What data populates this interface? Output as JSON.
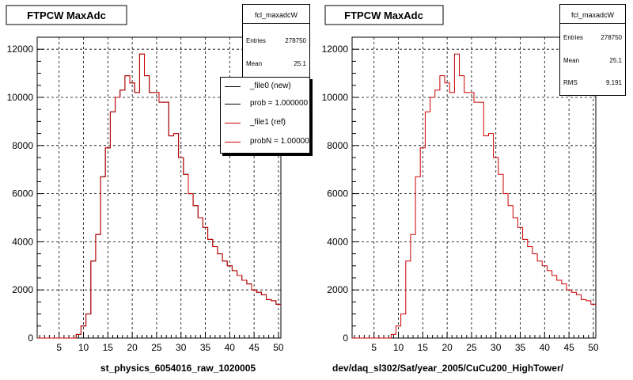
{
  "colors": {
    "new_line": "#000000",
    "ref_line": "#cc0000",
    "grid": "#000000",
    "frame": "#000000"
  },
  "left_panel": {
    "title": "FTPCW MaxAdc",
    "xlabel": "st_physics_6054016_raw_1020005",
    "stats": {
      "name": "fcl_maxadcW",
      "entries_label": "Entries",
      "entries_value": "278750",
      "mean_label": "Mean",
      "mean_value": "25.1"
    },
    "legend": [
      {
        "label": "_file0 (new)",
        "color": "#000000"
      },
      {
        "label": "prob = 1.000000",
        "color": "#000000"
      },
      {
        "label": "_file1 (ref)",
        "color": "#cc0000"
      },
      {
        "label": "probN = 1.000000",
        "color": "#cc0000"
      }
    ]
  },
  "right_panel": {
    "title": "FTPCW MaxAdc",
    "xlabel": "dev/daq_sl302/Sat/year_2005/CuCu200_HighTower/",
    "stats": {
      "name": "fcl_maxadcW",
      "entries_label": "Entries",
      "entries_value": "278750",
      "mean_label": "Mean",
      "mean_value": "25.1",
      "rms_label": "RMS",
      "rms_value": "9.191"
    }
  },
  "chart_data": [
    {
      "type": "histogram",
      "title": "FTPCW MaxAdc",
      "xlabel": "st_physics_6054016_raw_1020005",
      "xlim": [
        0.5,
        50.5
      ],
      "ylim": [
        0,
        12500
      ],
      "xticks": [
        5,
        10,
        15,
        20,
        25,
        30,
        35,
        40,
        45,
        50
      ],
      "yticks": [
        0,
        2000,
        4000,
        6000,
        8000,
        10000,
        12000
      ],
      "grid": true,
      "bin_edges_start": 0.5,
      "bin_width": 1,
      "series": [
        {
          "name": "_file0 (new)",
          "values": [
            0,
            0,
            0,
            0,
            0,
            0,
            0,
            0,
            150,
            500,
            1000,
            3200,
            4300,
            6700,
            7900,
            9400,
            10000,
            10300,
            10900,
            10600,
            10200,
            11800,
            10900,
            10200,
            10200,
            9800,
            9800,
            8400,
            8500,
            7500,
            6800,
            6000,
            5500,
            5000,
            4600,
            4100,
            3800,
            3500,
            3200,
            3000,
            2800,
            2600,
            2400,
            2250,
            2000,
            1900,
            1800,
            1600,
            1550,
            1400
          ]
        },
        {
          "name": "_file1 (ref)",
          "values": [
            0,
            0,
            0,
            0,
            0,
            0,
            0,
            0,
            150,
            500,
            1000,
            3200,
            4300,
            6700,
            7900,
            9400,
            10000,
            10300,
            10900,
            10600,
            10200,
            11800,
            10900,
            10200,
            10200,
            9800,
            9800,
            8400,
            8500,
            7500,
            6800,
            6000,
            5500,
            5000,
            4600,
            4100,
            3800,
            3500,
            3200,
            3000,
            2800,
            2600,
            2400,
            2250,
            2000,
            1900,
            1800,
            1600,
            1550,
            1400
          ]
        }
      ]
    },
    {
      "type": "histogram",
      "title": "FTPCW MaxAdc",
      "xlabel": "dev/daq_sl302/Sat/year_2005/CuCu200_HighTower/",
      "xlim": [
        0.5,
        50.5
      ],
      "ylim": [
        0,
        12500
      ],
      "xticks": [
        5,
        10,
        15,
        20,
        25,
        30,
        35,
        40,
        45,
        50
      ],
      "yticks": [
        0,
        2000,
        4000,
        6000,
        8000,
        10000,
        12000
      ],
      "grid": true,
      "bin_edges_start": 0.5,
      "bin_width": 1,
      "series": [
        {
          "name": "",
          "values": [
            0,
            0,
            0,
            0,
            0,
            0,
            0,
            0,
            150,
            500,
            1000,
            3200,
            4300,
            6700,
            7900,
            9400,
            10000,
            10300,
            10900,
            10600,
            10200,
            11800,
            10900,
            10200,
            10200,
            9800,
            9800,
            8400,
            8500,
            7500,
            6800,
            6000,
            5500,
            5000,
            4600,
            4100,
            3800,
            3500,
            3200,
            3000,
            2800,
            2600,
            2400,
            2250,
            2000,
            1900,
            1800,
            1600,
            1550,
            1400
          ]
        }
      ]
    }
  ]
}
